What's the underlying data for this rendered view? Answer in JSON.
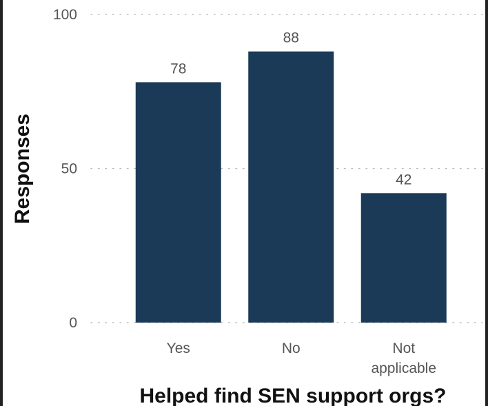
{
  "chart_data": {
    "type": "bar",
    "title": "",
    "xlabel": "Helped find SEN support orgs?",
    "ylabel": "Responses",
    "categories": [
      [
        "Yes"
      ],
      [
        "No"
      ],
      [
        "Not",
        "applicable"
      ]
    ],
    "values": [
      78,
      88,
      42
    ],
    "yticks": [
      0,
      50,
      100
    ],
    "ylim": [
      0,
      100
    ],
    "grid": true,
    "legend": "none",
    "bar_color": "#1a3a57"
  }
}
